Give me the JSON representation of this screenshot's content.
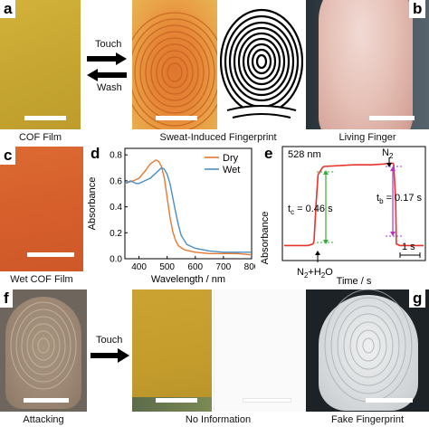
{
  "panels": {
    "a": {
      "letter": "a",
      "caption_film": "COF Film",
      "caption_fp": "Sweat-Induced Fingerprint",
      "touch": "Touch",
      "wash": "Wash"
    },
    "b": {
      "letter": "b",
      "caption": "Living Finger"
    },
    "c": {
      "letter": "c",
      "caption": "Wet COF Film"
    },
    "d": {
      "letter": "d"
    },
    "e": {
      "letter": "e"
    },
    "f": {
      "letter": "f",
      "caption": "Attacking",
      "touch": "Touch",
      "caption_noinfo": "No Information"
    },
    "g": {
      "letter": "g",
      "caption": "Fake Fingerprint"
    }
  },
  "colors": {
    "dry": "#e8772e",
    "wet": "#4a8fc4",
    "kinetic": "#e8332a",
    "cof_yellow": "#c9a431",
    "cof_orange": "#e0762e",
    "wet_cof": "#d8612e"
  },
  "chart_data": [
    {
      "type": "line",
      "title": "",
      "xlabel": "Wavelength / nm",
      "ylabel": "Absorbance",
      "xlim": [
        350,
        800
      ],
      "ylim": [
        0.0,
        0.85
      ],
      "xticks": [
        "400",
        "500",
        "600",
        "700",
        "800"
      ],
      "yticks": [
        "0.0",
        "0.2",
        "0.4",
        "0.6",
        "0.8"
      ],
      "legend": "top-right",
      "series": [
        {
          "name": "Dry",
          "x": [
            350,
            380,
            400,
            420,
            440,
            460,
            470,
            480,
            490,
            500,
            510,
            520,
            530,
            540,
            560,
            580,
            600,
            650,
            700,
            750,
            800
          ],
          "values": [
            0.58,
            0.6,
            0.62,
            0.67,
            0.73,
            0.76,
            0.75,
            0.71,
            0.62,
            0.47,
            0.32,
            0.21,
            0.14,
            0.1,
            0.07,
            0.06,
            0.05,
            0.04,
            0.04,
            0.04,
            0.03
          ]
        },
        {
          "name": "Wet",
          "x": [
            350,
            370,
            390,
            400,
            420,
            440,
            460,
            480,
            490,
            500,
            510,
            520,
            530,
            540,
            550,
            570,
            600,
            650,
            700,
            750,
            800
          ],
          "values": [
            0.58,
            0.6,
            0.58,
            0.58,
            0.6,
            0.62,
            0.66,
            0.7,
            0.69,
            0.65,
            0.58,
            0.47,
            0.36,
            0.26,
            0.18,
            0.11,
            0.08,
            0.06,
            0.05,
            0.05,
            0.05
          ]
        }
      ]
    },
    {
      "type": "line",
      "title": "528 nm",
      "xlabel": "Time / s",
      "ylabel": "Absorbance",
      "grid": false,
      "scale_label": "1 s",
      "annotations": [
        "N2",
        "N2+H2O",
        "tc = 0.46 s",
        "tb = 0.17 s"
      ],
      "series": [
        {
          "name": "528 nm",
          "x": [
            0,
            1.2,
            1.45,
            1.5,
            1.6,
            1.7,
            1.9,
            2.0,
            3.5,
            4.4,
            5.0,
            5.3,
            5.46,
            5.5,
            5.6,
            5.63,
            5.8,
            6.5,
            7.0
          ],
          "values": [
            0.03,
            0.03,
            0.04,
            0.06,
            0.28,
            0.46,
            0.5,
            0.51,
            0.52,
            0.52,
            0.525,
            0.53,
            0.53,
            0.52,
            0.3,
            0.04,
            0.03,
            0.03,
            0.03
          ]
        }
      ]
    }
  ],
  "plot_text": {
    "d_legend_dry": "Dry",
    "d_legend_wet": "Wet",
    "e_wavelength": "528 nm",
    "e_n2_top": "N",
    "e_n2_sub": "2",
    "e_n2h2o_1": "N",
    "e_n2h2o_sub1": "2",
    "e_n2h2o_2": "+H",
    "e_n2h2o_sub2": "2",
    "e_n2h2o_3": "O",
    "e_tc_t": "t",
    "e_tc_sub": "c",
    "e_tc_val": " = 0.46 s",
    "e_tb_t": "t",
    "e_tb_sub": "b",
    "e_tb_val": " = 0.17 s",
    "e_scale": "1 s"
  }
}
